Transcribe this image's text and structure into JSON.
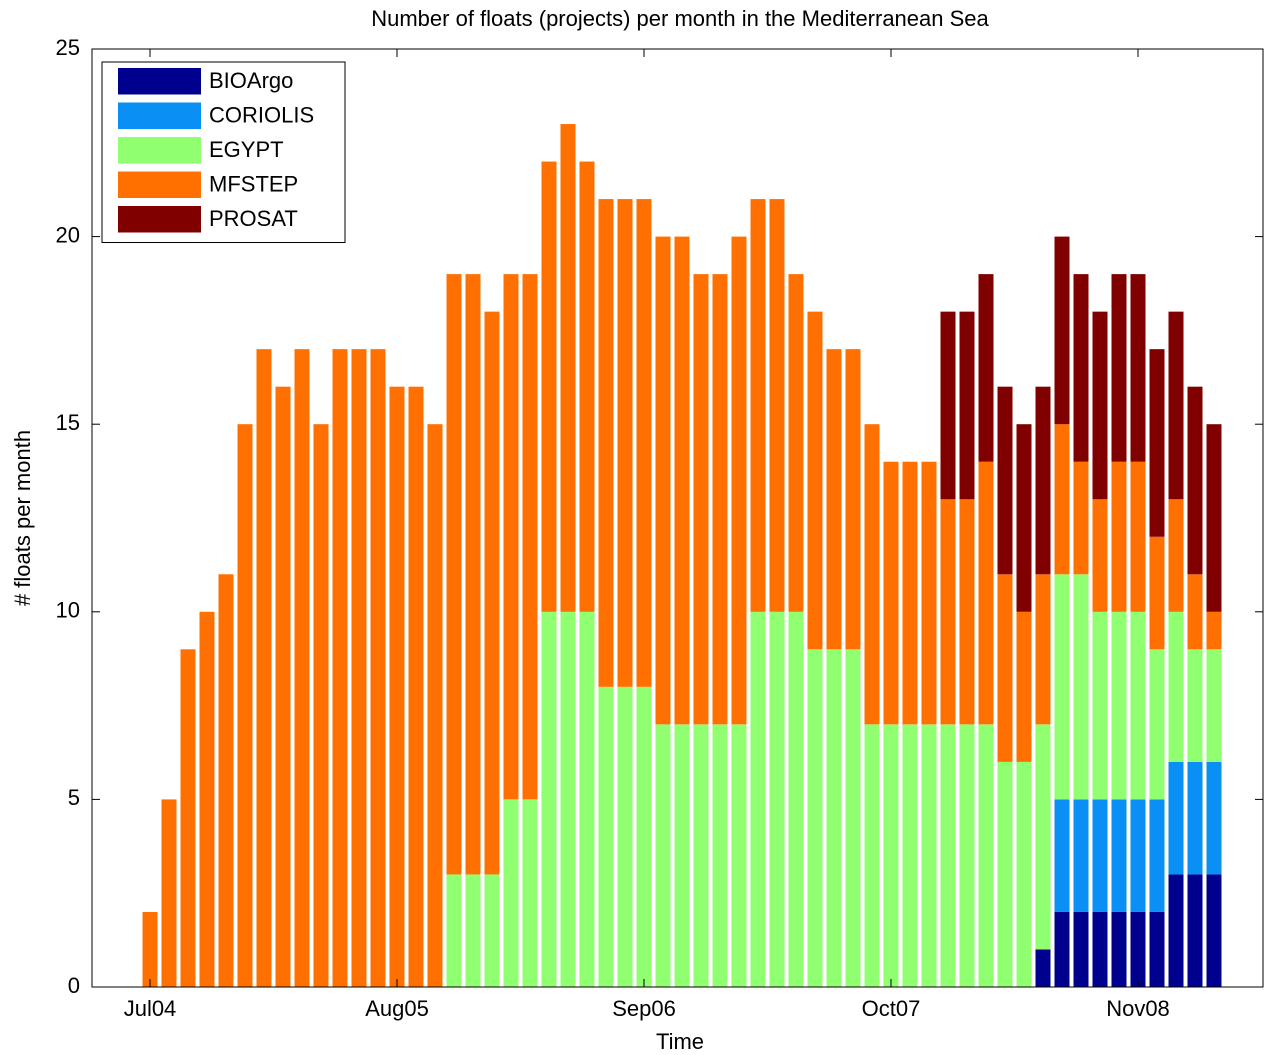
{
  "chart_data": {
    "type": "stacked_bar",
    "title": "Number of floats (projects) per month in the Mediterranean Sea",
    "xlabel": "Time",
    "ylabel": "# floats per month",
    "categories": [
      "Jul04",
      null,
      null,
      null,
      null,
      null,
      null,
      null,
      null,
      null,
      null,
      null,
      null,
      "Aug05",
      null,
      null,
      null,
      null,
      null,
      null,
      null,
      null,
      null,
      null,
      null,
      null,
      "Sep06",
      null,
      null,
      null,
      null,
      null,
      null,
      null,
      null,
      null,
      null,
      null,
      null,
      "Oct07",
      null,
      null,
      null,
      null,
      null,
      null,
      null,
      null,
      null,
      null,
      null,
      null,
      "Nov08",
      null,
      null,
      null,
      null
    ],
    "series": [
      {
        "name": "BIOArgo",
        "color": "#00008f",
        "values": [
          0,
          0,
          0,
          0,
          0,
          0,
          0,
          0,
          0,
          0,
          0,
          0,
          0,
          0,
          0,
          0,
          0,
          0,
          0,
          0,
          0,
          0,
          0,
          0,
          0,
          0,
          0,
          0,
          0,
          0,
          0,
          0,
          0,
          0,
          0,
          0,
          0,
          0,
          0,
          0,
          0,
          0,
          0,
          0,
          0,
          0,
          0,
          1,
          2,
          2,
          2,
          2,
          2,
          2,
          3,
          3,
          3
        ]
      },
      {
        "name": "CORIOLIS",
        "color": "#0a90f5",
        "values": [
          0,
          0,
          0,
          0,
          0,
          0,
          0,
          0,
          0,
          0,
          0,
          0,
          0,
          0,
          0,
          0,
          0,
          0,
          0,
          0,
          0,
          0,
          0,
          0,
          0,
          0,
          0,
          0,
          0,
          0,
          0,
          0,
          0,
          0,
          0,
          0,
          0,
          0,
          0,
          0,
          0,
          0,
          0,
          0,
          0,
          0,
          0,
          0,
          3,
          3,
          3,
          3,
          3,
          3,
          3,
          3,
          3
        ]
      },
      {
        "name": "EGYPT",
        "color": "#90ff70",
        "values": [
          0,
          0,
          0,
          0,
          0,
          0,
          0,
          0,
          0,
          0,
          0,
          0,
          0,
          0,
          0,
          0,
          3,
          3,
          3,
          5,
          5,
          10,
          10,
          10,
          8,
          8,
          8,
          7,
          7,
          7,
          7,
          7,
          10,
          10,
          10,
          9,
          9,
          9,
          7,
          7,
          7,
          7,
          7,
          7,
          7,
          6,
          6,
          6,
          6,
          6,
          5,
          5,
          5,
          4,
          4,
          3,
          3
        ]
      },
      {
        "name": "MFSTEP",
        "color": "#ff7000",
        "values": [
          2,
          5,
          9,
          10,
          11,
          15,
          17,
          16,
          17,
          15,
          17,
          17,
          17,
          16,
          16,
          15,
          16,
          16,
          15,
          14,
          14,
          12,
          13,
          12,
          13,
          13,
          13,
          13,
          13,
          12,
          12,
          13,
          11,
          11,
          9,
          9,
          8,
          8,
          8,
          7,
          7,
          7,
          6,
          6,
          7,
          5,
          4,
          4,
          4,
          3,
          3,
          4,
          4,
          3,
          3,
          2,
          1
        ]
      },
      {
        "name": "PROSAT",
        "color": "#800000",
        "values": [
          0,
          0,
          0,
          0,
          0,
          0,
          0,
          0,
          0,
          0,
          0,
          0,
          0,
          0,
          0,
          0,
          0,
          0,
          0,
          0,
          0,
          0,
          0,
          0,
          0,
          0,
          0,
          0,
          0,
          0,
          0,
          0,
          0,
          0,
          0,
          0,
          0,
          0,
          0,
          0,
          0,
          0,
          5,
          5,
          5,
          5,
          5,
          5,
          5,
          5,
          5,
          5,
          5,
          5,
          5,
          5,
          5
        ]
      }
    ],
    "ylim": [
      0,
      25
    ],
    "yticks": [
      0,
      5,
      10,
      15,
      20,
      25
    ],
    "legend": "upper left"
  }
}
